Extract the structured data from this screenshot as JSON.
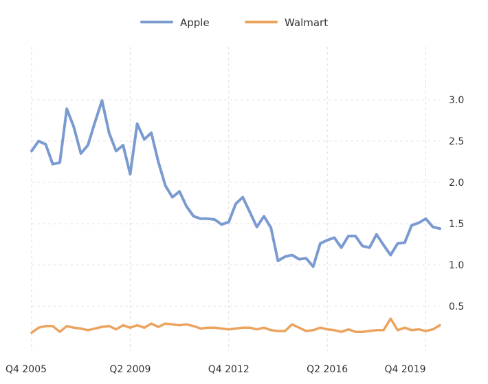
{
  "chart_data": {
    "type": "line",
    "title": "",
    "xlabel": "",
    "ylabel": "",
    "grid": true,
    "legend_position": "top-center",
    "x": [
      "Q4 2005",
      "Q1 2006",
      "Q2 2006",
      "Q3 2006",
      "Q4 2006",
      "Q1 2007",
      "Q2 2007",
      "Q3 2007",
      "Q4 2007",
      "Q1 2008",
      "Q2 2008",
      "Q3 2008",
      "Q4 2008",
      "Q1 2009",
      "Q2 2009",
      "Q3 2009",
      "Q4 2009",
      "Q1 2010",
      "Q2 2010",
      "Q3 2010",
      "Q4 2010",
      "Q1 2011",
      "Q2 2011",
      "Q3 2011",
      "Q4 2011",
      "Q1 2012",
      "Q2 2012",
      "Q3 2012",
      "Q4 2012",
      "Q1 2013",
      "Q2 2013",
      "Q3 2013",
      "Q4 2013",
      "Q1 2014",
      "Q2 2014",
      "Q3 2014",
      "Q4 2014",
      "Q1 2015",
      "Q2 2015",
      "Q3 2015",
      "Q4 2015",
      "Q1 2016",
      "Q2 2016",
      "Q3 2016",
      "Q4 2016",
      "Q1 2017",
      "Q2 2017",
      "Q3 2017",
      "Q4 2017",
      "Q1 2018",
      "Q2 2018",
      "Q3 2018",
      "Q4 2018",
      "Q1 2019",
      "Q2 2019",
      "Q3 2019",
      "Q4 2019",
      "Q1 2020",
      "Q2 2020"
    ],
    "x_ticks": [
      "Q4 2005",
      "Q2 2009",
      "Q4 2012",
      "Q2 2016",
      "Q4 2019"
    ],
    "y_ticks": [
      "0.5",
      "1.0",
      "1.5",
      "2.0",
      "2.5",
      "3.0"
    ],
    "ylim": [
      0.0,
      3.3
    ],
    "series": [
      {
        "name": "Apple",
        "color": "#7B9BD0",
        "values": [
          2.38,
          2.5,
          2.46,
          2.22,
          2.24,
          2.89,
          2.67,
          2.35,
          2.45,
          2.73,
          2.99,
          2.6,
          2.38,
          2.45,
          2.1,
          2.71,
          2.52,
          2.6,
          2.25,
          1.96,
          1.82,
          1.89,
          1.71,
          1.59,
          1.56,
          1.56,
          1.55,
          1.49,
          1.52,
          1.74,
          1.82,
          1.64,
          1.46,
          1.59,
          1.45,
          1.05,
          1.1,
          1.12,
          1.07,
          1.08,
          0.98,
          1.26,
          1.3,
          1.33,
          1.21,
          1.35,
          1.35,
          1.23,
          1.21,
          1.37,
          1.24,
          1.12,
          1.26,
          1.27,
          1.48,
          1.51,
          1.56,
          1.46,
          1.44
        ]
      },
      {
        "name": "Walmart",
        "color": "#EBA35E",
        "values": [
          0.18,
          0.24,
          0.26,
          0.26,
          0.19,
          0.26,
          0.24,
          0.23,
          0.21,
          0.23,
          0.25,
          0.26,
          0.22,
          0.27,
          0.24,
          0.27,
          0.24,
          0.29,
          0.25,
          0.29,
          0.28,
          0.27,
          0.28,
          0.26,
          0.23,
          0.24,
          0.24,
          0.23,
          0.22,
          0.23,
          0.24,
          0.24,
          0.22,
          0.24,
          0.21,
          0.2,
          0.2,
          0.28,
          0.24,
          0.2,
          0.21,
          0.24,
          0.22,
          0.21,
          0.19,
          0.22,
          0.19,
          0.19,
          0.2,
          0.21,
          0.21,
          0.35,
          0.21,
          0.24,
          0.21,
          0.22,
          0.2,
          0.22,
          0.27
        ]
      }
    ]
  }
}
